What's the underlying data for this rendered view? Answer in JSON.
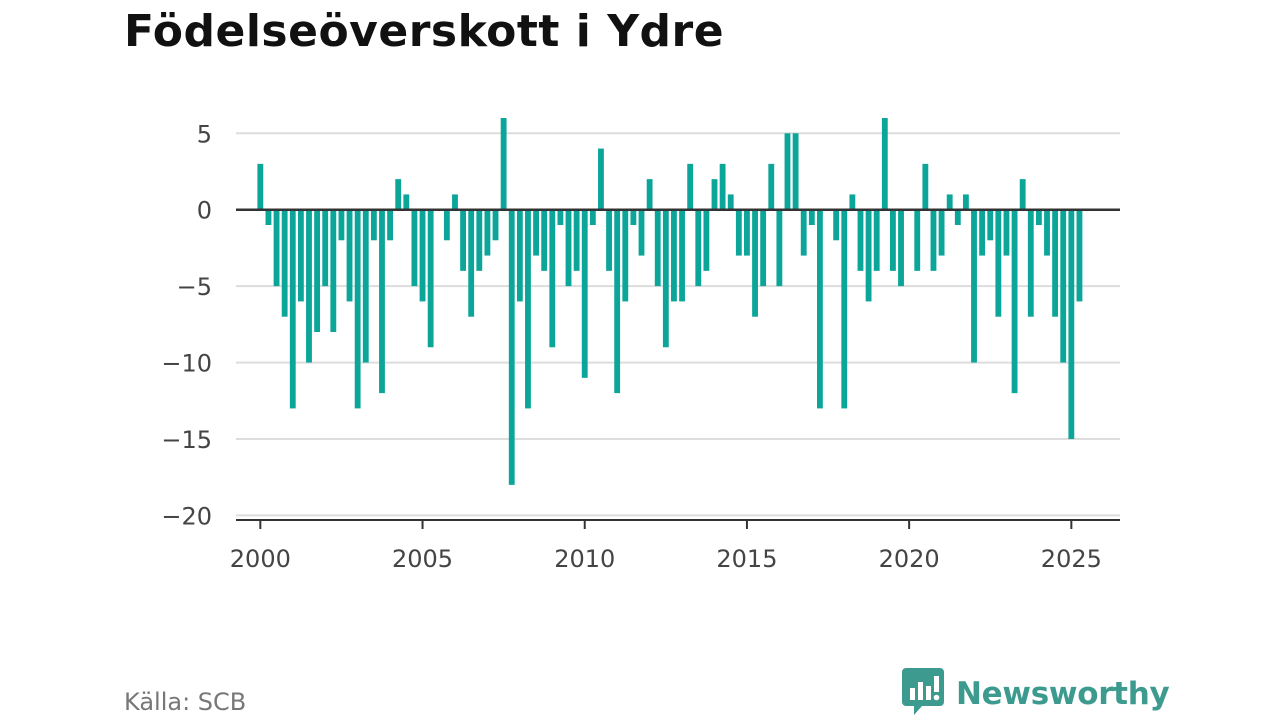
{
  "title": "Födelseöverskott i Ydre",
  "source": "Källa: SCB",
  "brand": {
    "name": "Newsworthy",
    "logo_icon": "newsworthy-logo-icon",
    "color": "#3c9a8e"
  },
  "colors": {
    "bar": "#0ba699",
    "grid": "#dddddd",
    "zero_line": "#333333",
    "axis": "#333333"
  },
  "chart_data": {
    "type": "bar",
    "title": "Födelseöverskott i Ydre",
    "xlabel": "",
    "ylabel": "",
    "grid": true,
    "y_ticks": [
      5,
      0,
      -5,
      -10,
      -15,
      -20
    ],
    "y_tick_labels": [
      "5",
      "0",
      "−5",
      "−10",
      "−15",
      "−20"
    ],
    "x_ticks": [
      2000,
      2005,
      2010,
      2015,
      2020,
      2025
    ],
    "x_tick_labels": [
      "2000",
      "2005",
      "2010",
      "2015",
      "2020",
      "2025"
    ],
    "xlim": [
      1999.25,
      2026.5
    ],
    "ylim": [
      -20.3,
      6.0
    ],
    "series": [
      {
        "x": [
          "2000Q1",
          "2000Q2",
          "2000Q3",
          "2000Q4",
          "2001Q1",
          "2001Q2",
          "2001Q3",
          "2001Q4",
          "2002Q1",
          "2002Q2",
          "2002Q3",
          "2002Q4",
          "2003Q1",
          "2003Q2",
          "2003Q3",
          "2003Q4",
          "2004Q1",
          "2004Q2",
          "2004Q3",
          "2004Q4",
          "2005Q1",
          "2005Q2",
          "2005Q3",
          "2005Q4",
          "2006Q1",
          "2006Q2",
          "2006Q3",
          "2006Q4",
          "2007Q1",
          "2007Q2",
          "2007Q3",
          "2007Q4",
          "2008Q1",
          "2008Q2",
          "2008Q3",
          "2008Q4",
          "2009Q1",
          "2009Q2",
          "2009Q3",
          "2009Q4",
          "2010Q1",
          "2010Q2",
          "2010Q3",
          "2010Q4",
          "2011Q1",
          "2011Q2",
          "2011Q3",
          "2011Q4",
          "2012Q1",
          "2012Q2",
          "2012Q3",
          "2012Q4",
          "2013Q1",
          "2013Q2",
          "2013Q3",
          "2013Q4",
          "2014Q1",
          "2014Q2",
          "2014Q3",
          "2014Q4",
          "2015Q1",
          "2015Q2",
          "2015Q3",
          "2015Q4",
          "2016Q1",
          "2016Q2",
          "2016Q3",
          "2016Q4",
          "2017Q1",
          "2017Q2",
          "2017Q3",
          "2017Q4",
          "2018Q1",
          "2018Q2",
          "2018Q3",
          "2018Q4",
          "2019Q1",
          "2019Q2",
          "2019Q3",
          "2019Q4",
          "2020Q1",
          "2020Q2",
          "2020Q3",
          "2020Q4",
          "2021Q1",
          "2021Q2",
          "2021Q3",
          "2021Q4",
          "2022Q1",
          "2022Q2",
          "2022Q3",
          "2022Q4",
          "2023Q1",
          "2023Q2",
          "2023Q3",
          "2023Q4",
          "2024Q1",
          "2024Q2",
          "2024Q3",
          "2024Q4",
          "2025Q1",
          "2025Q2"
        ],
        "values": [
          3,
          -1,
          -5,
          -7,
          -13,
          -6,
          -10,
          -8,
          -5,
          -8,
          -2,
          -6,
          -13,
          -10,
          -2,
          -12,
          -2,
          2,
          1,
          -5,
          -6,
          -9,
          0,
          -2,
          1,
          -4,
          -7,
          -4,
          -3,
          -2,
          6,
          -18,
          -6,
          -13,
          -3,
          -4,
          -9,
          -1,
          -5,
          -4,
          -11,
          -1,
          4,
          -4,
          -12,
          -6,
          -1,
          -3,
          2,
          -5,
          -9,
          -6,
          -6,
          3,
          -5,
          -4,
          2,
          3,
          1,
          -3,
          -3,
          -7,
          -5,
          3,
          -5,
          5,
          5,
          -3,
          -1,
          -13,
          0,
          -2,
          -13,
          1,
          -4,
          -6,
          -4,
          6,
          -4,
          -5,
          0,
          -4,
          3,
          -4,
          -3,
          1,
          -1,
          1,
          -10,
          -3,
          -2,
          -7,
          -3,
          -12,
          2,
          -7,
          -1,
          -3,
          -7,
          -10,
          -15,
          -6
        ]
      }
    ]
  }
}
